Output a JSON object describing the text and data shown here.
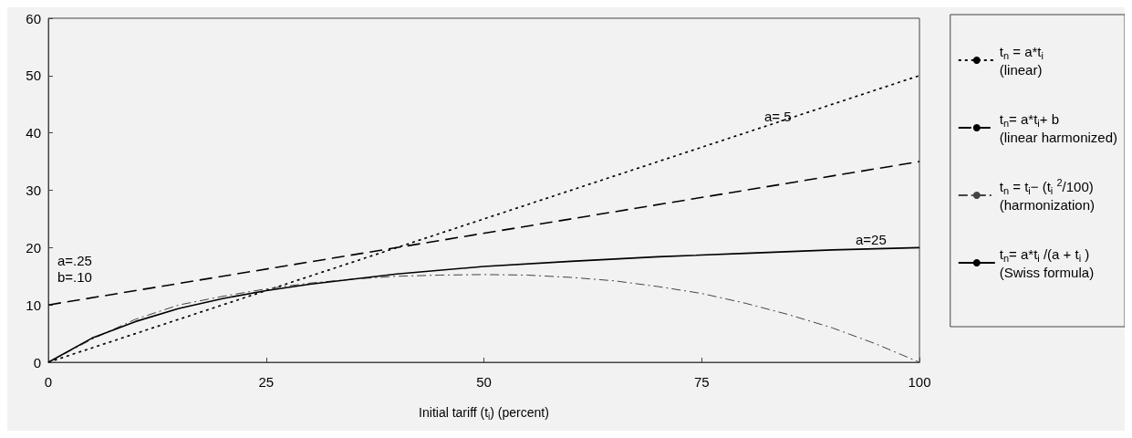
{
  "chart_data": {
    "type": "line",
    "xlabel": "Initial tariff (t$_{i}$) (percent)",
    "xlim": [
      0,
      100
    ],
    "xticks": [
      0,
      25,
      50,
      75,
      100
    ],
    "ylim": [
      0,
      60
    ],
    "yticks": [
      0,
      10,
      20,
      30,
      40,
      50,
      60
    ],
    "grid": false,
    "legend": "right",
    "marker": "none",
    "series": [
      {
        "name": "t$_{n}$ = a*t$_{i}$\n(linear)",
        "color": "#000000",
        "line_style": "dotted",
        "x": [
          0,
          100
        ],
        "values": [
          0,
          50
        ]
      },
      {
        "name": "t$_{n}$= a*t$_{i}$+ b\n(linear harmonized)",
        "color": "#000000",
        "line_style": "dashed",
        "x": [
          0,
          100
        ],
        "values": [
          10,
          35
        ]
      },
      {
        "name": "t$_{n}$ = t$_{i}$− (t$_{i}$ $^{2}$/100)\n(harmonization)",
        "color": "#444444",
        "line_style": "dashdot",
        "x": [
          0,
          5,
          10,
          15,
          20,
          25,
          30,
          35,
          40,
          45,
          50,
          55,
          60,
          65,
          70,
          75,
          80,
          85,
          90,
          95,
          100
        ],
        "values": [
          0,
          4,
          7.5,
          10,
          11.5,
          12.8,
          13.8,
          14.5,
          15,
          15.2,
          15.3,
          15.2,
          14.8,
          14.2,
          13.2,
          12,
          10.3,
          8.3,
          6,
          3.2,
          0
        ]
      },
      {
        "name": "t$_{n}$= a*t$_{i}$ /(a + t$_{i}$ )\n(Swiss formula)",
        "color": "#000000",
        "line_style": "solid",
        "x": [
          0,
          5,
          10,
          15,
          20,
          25,
          30,
          40,
          50,
          60,
          70,
          80,
          90,
          100
        ],
        "values": [
          0,
          4.2,
          7.1,
          9.4,
          11.1,
          12.5,
          13.6,
          15.4,
          16.7,
          17.6,
          18.4,
          19,
          19.6,
          20
        ]
      }
    ],
    "annotations": [
      "a=.5",
      "a=25",
      "a=.25\nb=.10"
    ]
  }
}
